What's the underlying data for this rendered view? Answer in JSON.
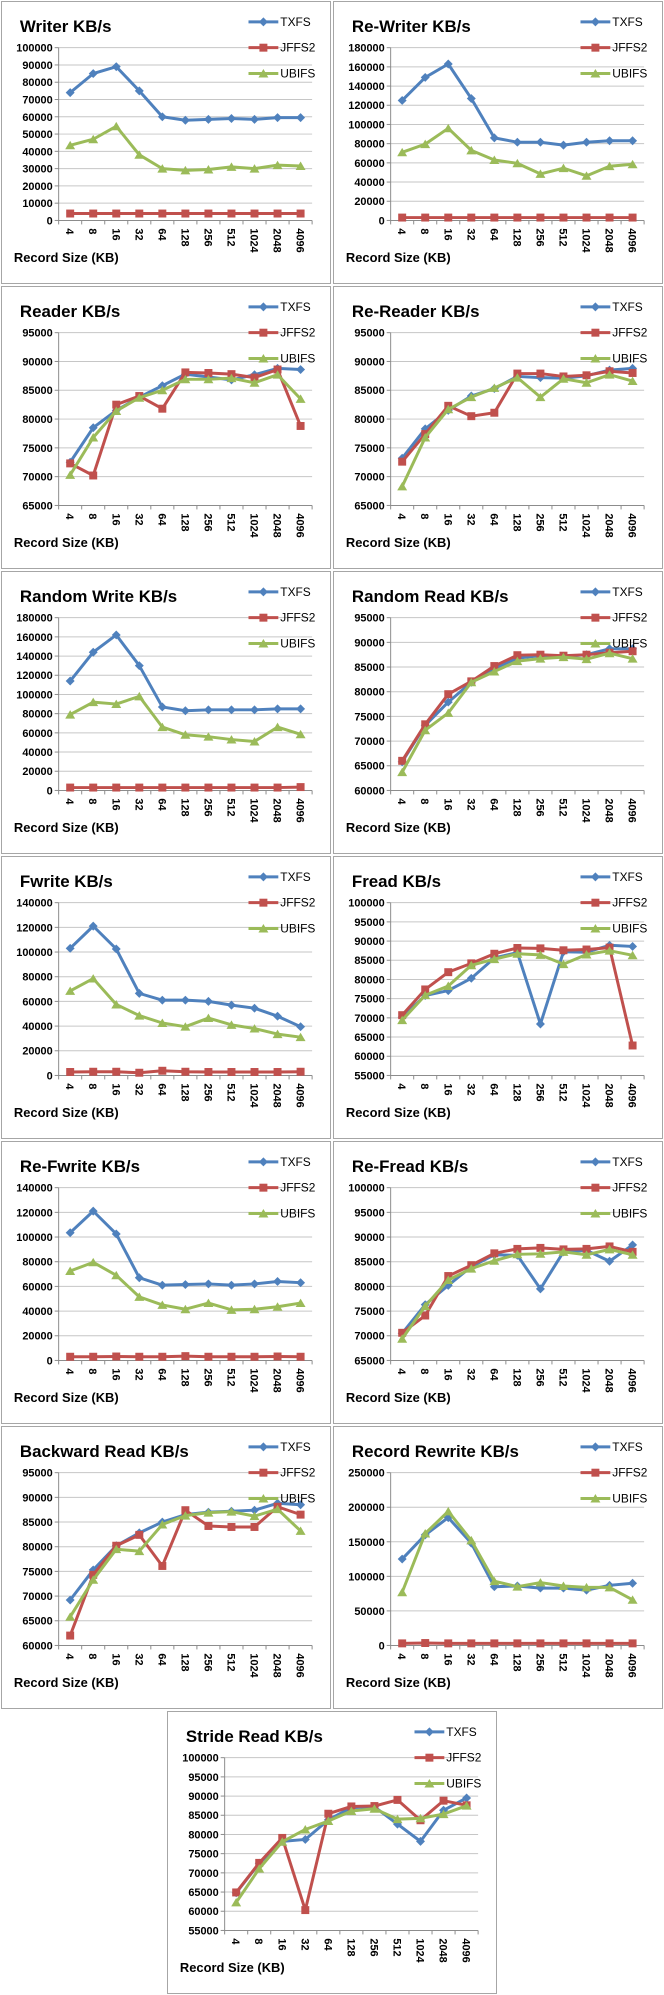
{
  "palette": {
    "txfs": "#4F81BD",
    "jffs2": "#C0504D",
    "ubifs": "#9BBB59",
    "gridline": "#C6C6C6",
    "axis": "#8C8C8C",
    "card_border": "#A6A6A6",
    "text": "#000000",
    "background": "#FFFFFF"
  },
  "chart_data": [
    {
      "type": "line",
      "title": "Writer KB/s",
      "xlabel": "Record Size (KB)",
      "categories": [
        "4",
        "8",
        "16",
        "32",
        "64",
        "128",
        "256",
        "512",
        "1024",
        "2048",
        "4096"
      ],
      "ylim": [
        0,
        100000
      ],
      "ytick_step": 10000,
      "grid": true,
      "legend_position": "top-right",
      "series": [
        {
          "name": "TXFS",
          "marker": "diamond",
          "color": "#4F81BD",
          "values": [
            74000,
            85000,
            89000,
            75000,
            60000,
            58000,
            58500,
            59000,
            58500,
            59500,
            59500
          ]
        },
        {
          "name": "JFFS2",
          "marker": "square",
          "color": "#C0504D",
          "values": [
            4000,
            4000,
            4000,
            4000,
            4000,
            4000,
            4000,
            4000,
            4000,
            4000,
            4000
          ]
        },
        {
          "name": "UBIFS",
          "marker": "triangle",
          "color": "#9BBB59",
          "values": [
            43500,
            47000,
            54500,
            38000,
            30000,
            29000,
            29500,
            31000,
            30000,
            32000,
            31500
          ]
        }
      ]
    },
    {
      "type": "line",
      "title": "Re-Writer KB/s",
      "xlabel": "Record Size (KB)",
      "categories": [
        "4",
        "8",
        "16",
        "32",
        "64",
        "128",
        "256",
        "512",
        "1024",
        "2048",
        "4096"
      ],
      "ylim": [
        0,
        180000
      ],
      "ytick_step": 20000,
      "grid": true,
      "legend_position": "top-right",
      "series": [
        {
          "name": "TXFS",
          "marker": "diamond",
          "color": "#4F81BD",
          "values": [
            125000,
            149000,
            163000,
            127000,
            86000,
            81500,
            81500,
            78500,
            81500,
            83000,
            83000
          ]
        },
        {
          "name": "JFFS2",
          "marker": "square",
          "color": "#C0504D",
          "values": [
            3000,
            3000,
            3000,
            3000,
            3000,
            3000,
            3000,
            3000,
            3000,
            3000,
            3000
          ]
        },
        {
          "name": "UBIFS",
          "marker": "triangle",
          "color": "#9BBB59",
          "values": [
            71000,
            79500,
            96000,
            73000,
            63000,
            59500,
            48500,
            54500,
            46500,
            56500,
            58500
          ]
        }
      ]
    },
    {
      "type": "line",
      "title": "Reader KB/s",
      "xlabel": "Record Size (KB)",
      "categories": [
        "4",
        "8",
        "16",
        "32",
        "64",
        "128",
        "256",
        "512",
        "1024",
        "2048",
        "4096"
      ],
      "ylim": [
        65000,
        95000
      ],
      "ytick_step": 5000,
      "grid": true,
      "legend_position": "top-right",
      "series": [
        {
          "name": "TXFS",
          "marker": "diamond",
          "color": "#4F81BD",
          "values": [
            72500,
            78500,
            81500,
            83800,
            85800,
            87800,
            87300,
            86800,
            87700,
            88800,
            88600
          ]
        },
        {
          "name": "JFFS2",
          "marker": "square",
          "color": "#C0504D",
          "values": [
            72300,
            70200,
            82500,
            84000,
            81800,
            88100,
            88000,
            87800,
            87200,
            88600,
            78800
          ]
        },
        {
          "name": "UBIFS",
          "marker": "triangle",
          "color": "#9BBB59",
          "values": [
            70300,
            76800,
            81400,
            83700,
            85000,
            86900,
            86900,
            87100,
            86300,
            87700,
            83500
          ]
        }
      ]
    },
    {
      "type": "line",
      "title": "Re-Reader KB/s",
      "xlabel": "Record Size (KB)",
      "categories": [
        "4",
        "8",
        "16",
        "32",
        "64",
        "128",
        "256",
        "512",
        "1024",
        "2048",
        "4096"
      ],
      "ylim": [
        65000,
        95000
      ],
      "ytick_step": 5000,
      "grid": true,
      "legend_position": "top-right",
      "series": [
        {
          "name": "TXFS",
          "marker": "diamond",
          "color": "#4F81BD",
          "values": [
            73200,
            78300,
            81500,
            84000,
            85300,
            87400,
            87200,
            87100,
            87500,
            88500,
            88800
          ]
        },
        {
          "name": "JFFS2",
          "marker": "square",
          "color": "#C0504D",
          "values": [
            72600,
            77400,
            82300,
            80500,
            81100,
            87900,
            87900,
            87400,
            87600,
            88300,
            88000
          ]
        },
        {
          "name": "UBIFS",
          "marker": "triangle",
          "color": "#9BBB59",
          "values": [
            68300,
            76800,
            81700,
            83800,
            85400,
            87200,
            83800,
            87000,
            86300,
            87700,
            86600
          ]
        }
      ]
    },
    {
      "type": "line",
      "title": "Random Write KB/s",
      "xlabel": "Record Size (KB)",
      "categories": [
        "4",
        "8",
        "16",
        "32",
        "64",
        "128",
        "256",
        "512",
        "1024",
        "2048",
        "4096"
      ],
      "ylim": [
        0,
        180000
      ],
      "ytick_step": 20000,
      "grid": true,
      "legend_position": "top-right",
      "series": [
        {
          "name": "TXFS",
          "marker": "diamond",
          "color": "#4F81BD",
          "values": [
            114000,
            144000,
            162000,
            130000,
            87000,
            83000,
            84000,
            84000,
            84000,
            85000,
            85000
          ]
        },
        {
          "name": "JFFS2",
          "marker": "square",
          "color": "#C0504D",
          "values": [
            3000,
            3000,
            3000,
            3000,
            3000,
            3000,
            3000,
            3000,
            3000,
            3000,
            3500
          ]
        },
        {
          "name": "UBIFS",
          "marker": "triangle",
          "color": "#9BBB59",
          "values": [
            79000,
            92000,
            90000,
            98000,
            66000,
            58000,
            56000,
            53000,
            51000,
            66000,
            58500
          ]
        }
      ]
    },
    {
      "type": "line",
      "title": "Random Read KB/s",
      "xlabel": "Record Size (KB)",
      "categories": [
        "4",
        "8",
        "16",
        "32",
        "64",
        "128",
        "256",
        "512",
        "1024",
        "2048",
        "4096"
      ],
      "ylim": [
        60000,
        95000
      ],
      "ytick_step": 5000,
      "grid": true,
      "legend_position": "top-right",
      "series": [
        {
          "name": "TXFS",
          "marker": "diamond",
          "color": "#4F81BD",
          "values": [
            65800,
            73200,
            77900,
            81900,
            84700,
            86800,
            87300,
            87100,
            87500,
            88700,
            88700
          ]
        },
        {
          "name": "JFFS2",
          "marker": "square",
          "color": "#C0504D",
          "values": [
            66000,
            73400,
            79500,
            82100,
            85200,
            87400,
            87500,
            87300,
            87500,
            87900,
            88200
          ]
        },
        {
          "name": "UBIFS",
          "marker": "triangle",
          "color": "#9BBB59",
          "values": [
            63700,
            72200,
            75700,
            81900,
            84100,
            86200,
            86700,
            87000,
            86600,
            87800,
            86700
          ]
        }
      ]
    },
    {
      "type": "line",
      "title": "Fwrite KB/s",
      "xlabel": "Record Size (KB)",
      "categories": [
        "4",
        "8",
        "16",
        "32",
        "64",
        "128",
        "256",
        "512",
        "1024",
        "2048",
        "4096"
      ],
      "ylim": [
        0,
        140000
      ],
      "ytick_step": 20000,
      "grid": true,
      "legend_position": "top-right",
      "series": [
        {
          "name": "TXFS",
          "marker": "diamond",
          "color": "#4F81BD",
          "values": [
            103000,
            121000,
            102500,
            66500,
            61000,
            61000,
            60000,
            57000,
            54500,
            48000,
            39500
          ]
        },
        {
          "name": "JFFS2",
          "marker": "square",
          "color": "#C0504D",
          "values": [
            2800,
            3000,
            3000,
            2200,
            3800,
            3000,
            2800,
            2800,
            2800,
            2800,
            3000
          ]
        },
        {
          "name": "UBIFS",
          "marker": "triangle",
          "color": "#9BBB59",
          "values": [
            68500,
            78500,
            57500,
            48500,
            42500,
            39500,
            46500,
            41000,
            38000,
            33500,
            31000
          ]
        }
      ]
    },
    {
      "type": "line",
      "title": "Fread KB/s",
      "xlabel": "Record Size (KB)",
      "categories": [
        "4",
        "8",
        "16",
        "32",
        "64",
        "128",
        "256",
        "512",
        "1024",
        "2048",
        "4096"
      ],
      "ylim": [
        55000,
        100000
      ],
      "ytick_step": 5000,
      "grid": true,
      "legend_position": "top-right",
      "series": [
        {
          "name": "TXFS",
          "marker": "diamond",
          "color": "#4F81BD",
          "values": [
            70200,
            75800,
            77100,
            80300,
            85600,
            87000,
            68400,
            87200,
            87100,
            88900,
            88600
          ]
        },
        {
          "name": "JFFS2",
          "marker": "square",
          "color": "#C0504D",
          "values": [
            70700,
            77400,
            81900,
            84200,
            86700,
            88200,
            88100,
            87600,
            87800,
            88300,
            62800
          ]
        },
        {
          "name": "UBIFS",
          "marker": "triangle",
          "color": "#9BBB59",
          "values": [
            69400,
            75900,
            78300,
            83700,
            85300,
            86700,
            86400,
            84000,
            86500,
            87500,
            86300
          ]
        }
      ]
    },
    {
      "type": "line",
      "title": "Re-Fwrite KB/s",
      "xlabel": "Record Size (KB)",
      "categories": [
        "4",
        "8",
        "16",
        "32",
        "64",
        "128",
        "256",
        "512",
        "1024",
        "2048",
        "4096"
      ],
      "ylim": [
        0,
        140000
      ],
      "ytick_step": 20000,
      "grid": true,
      "legend_position": "top-right",
      "series": [
        {
          "name": "TXFS",
          "marker": "diamond",
          "color": "#4F81BD",
          "values": [
            103500,
            121000,
            102500,
            67000,
            61000,
            61500,
            62000,
            61000,
            62000,
            64000,
            63000
          ]
        },
        {
          "name": "JFFS2",
          "marker": "square",
          "color": "#C0504D",
          "values": [
            3000,
            3000,
            3200,
            3000,
            3000,
            3500,
            3000,
            3000,
            3000,
            3200,
            3000
          ]
        },
        {
          "name": "UBIFS",
          "marker": "triangle",
          "color": "#9BBB59",
          "values": [
            72500,
            79500,
            69000,
            51500,
            45000,
            41500,
            46500,
            41000,
            41500,
            43500,
            46500
          ]
        }
      ]
    },
    {
      "type": "line",
      "title": "Re-Fread KB/s",
      "xlabel": "Record Size (KB)",
      "categories": [
        "4",
        "8",
        "16",
        "32",
        "64",
        "128",
        "256",
        "512",
        "1024",
        "2048",
        "4096"
      ],
      "ylim": [
        65000,
        100000
      ],
      "ytick_step": 5000,
      "grid": true,
      "legend_position": "top-right",
      "series": [
        {
          "name": "TXFS",
          "marker": "diamond",
          "color": "#4F81BD",
          "values": [
            70500,
            76300,
            80200,
            84000,
            86400,
            86300,
            79500,
            87000,
            87300,
            85100,
            88400
          ]
        },
        {
          "name": "JFFS2",
          "marker": "square",
          "color": "#C0504D",
          "values": [
            70600,
            74100,
            82100,
            84300,
            86700,
            87600,
            87800,
            87500,
            87600,
            88100,
            87000
          ]
        },
        {
          "name": "UBIFS",
          "marker": "triangle",
          "color": "#9BBB59",
          "values": [
            69400,
            76000,
            81300,
            83600,
            85200,
            86500,
            86600,
            87000,
            86400,
            87500,
            86400
          ]
        }
      ]
    },
    {
      "type": "line",
      "title": "Backward Read KB/s",
      "xlabel": "Record Size (KB)",
      "categories": [
        "4",
        "8",
        "16",
        "32",
        "64",
        "128",
        "256",
        "512",
        "1024",
        "2048",
        "4096"
      ],
      "ylim": [
        60000,
        95000
      ],
      "ytick_step": 5000,
      "grid": true,
      "legend_position": "top-right",
      "series": [
        {
          "name": "TXFS",
          "marker": "diamond",
          "color": "#4F81BD",
          "values": [
            69200,
            75300,
            80200,
            82800,
            85000,
            86500,
            87000,
            87200,
            87400,
            88800,
            88500
          ]
        },
        {
          "name": "JFFS2",
          "marker": "square",
          "color": "#C0504D",
          "values": [
            62000,
            74300,
            80200,
            82400,
            76100,
            87400,
            84200,
            84000,
            84000,
            88100,
            86500
          ]
        },
        {
          "name": "UBIFS",
          "marker": "triangle",
          "color": "#9BBB59",
          "values": [
            65800,
            73300,
            79500,
            79100,
            84500,
            86300,
            86900,
            87100,
            86200,
            87600,
            83200
          ]
        }
      ]
    },
    {
      "type": "line",
      "title": "Record Rewrite KB/s",
      "xlabel": "Record Size (KB)",
      "categories": [
        "4",
        "8",
        "16",
        "32",
        "64",
        "128",
        "256",
        "512",
        "1024",
        "2048",
        "4096"
      ],
      "ylim": [
        0,
        250000
      ],
      "ytick_step": 50000,
      "grid": true,
      "legend_position": "top-right",
      "series": [
        {
          "name": "TXFS",
          "marker": "diamond",
          "color": "#4F81BD",
          "values": [
            125000,
            160000,
            185000,
            148000,
            85000,
            86000,
            83000,
            83000,
            80000,
            87000,
            90000
          ]
        },
        {
          "name": "JFFS2",
          "marker": "square",
          "color": "#C0504D",
          "values": [
            3000,
            3500,
            3000,
            3000,
            3000,
            3000,
            3000,
            3000,
            3000,
            3000,
            3000
          ]
        },
        {
          "name": "UBIFS",
          "marker": "triangle",
          "color": "#9BBB59",
          "values": [
            77000,
            162000,
            194000,
            152000,
            93000,
            85000,
            91000,
            86000,
            84000,
            84000,
            66000
          ]
        }
      ]
    },
    {
      "type": "line",
      "title": "Stride Read KB/s",
      "xlabel": "Record Size (KB)",
      "categories": [
        "4",
        "8",
        "16",
        "32",
        "64",
        "128",
        "256",
        "512",
        "1024",
        "2048",
        "4096"
      ],
      "ylim": [
        55000,
        100000
      ],
      "ytick_step": 5000,
      "grid": true,
      "legend_position": "top-right",
      "series": [
        {
          "name": "TXFS",
          "marker": "diamond",
          "color": "#4F81BD",
          "values": [
            64800,
            72500,
            78200,
            78700,
            83800,
            87000,
            87200,
            82700,
            78200,
            86300,
            89500
          ]
        },
        {
          "name": "JFFS2",
          "marker": "square",
          "color": "#C0504D",
          "values": [
            64900,
            72600,
            79100,
            60300,
            85400,
            87300,
            87400,
            89000,
            83700,
            88800,
            87600
          ]
        },
        {
          "name": "UBIFS",
          "marker": "triangle",
          "color": "#9BBB59",
          "values": [
            62300,
            71100,
            78100,
            81300,
            83500,
            86100,
            86700,
            84000,
            84200,
            85300,
            87500
          ]
        }
      ]
    }
  ]
}
